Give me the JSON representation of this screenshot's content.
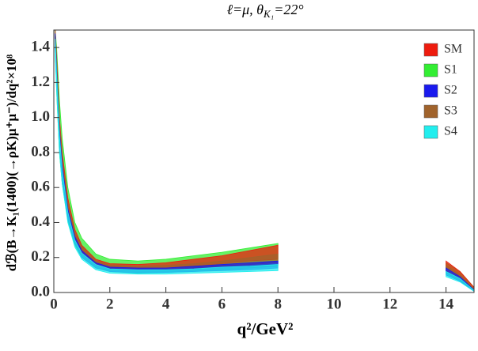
{
  "chart_data": {
    "type": "band",
    "title": [
      "ℓ=μ, θ",
      "K₁",
      "=22°"
    ],
    "xlabel": "q²/GeV²",
    "ylabel": "dℬ(B→K₁(1400)(→ρK)μ⁺μ⁻)/dq²×10⁸",
    "xlim": [
      0,
      15
    ],
    "ylim": [
      0,
      1.5
    ],
    "xticks": [
      0,
      2,
      4,
      6,
      8,
      10,
      12,
      14
    ],
    "yticks": [
      {
        "value": 0,
        "label": "0.0"
      },
      0.2,
      0.4,
      0.6,
      0.8,
      {
        "value": 1,
        "label": "1.0"
      },
      1.2,
      1.4
    ],
    "legend": "top-right",
    "x": [
      0.05,
      0.1,
      0.2,
      0.3,
      0.5,
      0.75,
      1,
      1.5,
      2,
      3,
      4,
      5,
      6,
      7,
      8,
      11,
      14,
      14.5,
      15
    ],
    "series": [
      {
        "name": "S1",
        "color": "#33ee33",
        "upper": [
          1.5,
          1.4,
          1.1,
          0.88,
          0.6,
          0.4,
          0.31,
          0.22,
          0.19,
          0.18,
          0.19,
          0.21,
          0.23,
          0.255,
          0.28,
          null,
          0.17,
          0.12,
          0.03
        ],
        "lower": [
          1.4,
          1.15,
          0.8,
          0.62,
          0.41,
          0.27,
          0.2,
          0.14,
          0.12,
          0.11,
          0.115,
          0.12,
          0.13,
          0.14,
          0.15,
          null,
          0.11,
          0.07,
          0.01
        ]
      },
      {
        "name": "SM",
        "color": "#ee1c0e",
        "upper": [
          1.5,
          1.35,
          1.0,
          0.8,
          0.54,
          0.36,
          0.27,
          0.19,
          0.165,
          0.16,
          0.17,
          0.19,
          0.21,
          0.24,
          0.27,
          null,
          0.18,
          0.12,
          0.03
        ],
        "lower": [
          1.45,
          1.25,
          0.9,
          0.7,
          0.47,
          0.31,
          0.23,
          0.165,
          0.14,
          0.135,
          0.14,
          0.15,
          0.165,
          0.18,
          0.19,
          null,
          0.14,
          0.09,
          0.015
        ]
      },
      {
        "name": "S3",
        "color": "#a0632c",
        "upper": [
          1.5,
          1.32,
          0.97,
          0.77,
          0.51,
          0.34,
          0.26,
          0.18,
          0.155,
          0.15,
          0.155,
          0.165,
          0.18,
          0.2,
          0.22,
          null,
          0.155,
          0.1,
          0.02
        ],
        "lower": [
          1.42,
          1.22,
          0.88,
          0.69,
          0.45,
          0.3,
          0.22,
          0.155,
          0.135,
          0.128,
          0.13,
          0.14,
          0.15,
          0.16,
          0.17,
          null,
          0.125,
          0.08,
          0.01
        ]
      },
      {
        "name": "S2",
        "color": "#1a1aee",
        "upper": [
          1.48,
          1.28,
          0.93,
          0.73,
          0.48,
          0.32,
          0.24,
          0.17,
          0.145,
          0.14,
          0.14,
          0.15,
          0.16,
          0.17,
          0.18,
          null,
          0.14,
          0.09,
          0.015
        ],
        "lower": [
          1.38,
          1.18,
          0.84,
          0.65,
          0.42,
          0.28,
          0.2,
          0.14,
          0.12,
          0.112,
          0.115,
          0.12,
          0.125,
          0.13,
          0.14,
          null,
          0.1,
          0.065,
          0.008
        ]
      },
      {
        "name": "S4",
        "color": "#22eeee",
        "upper": [
          1.45,
          1.25,
          0.9,
          0.7,
          0.46,
          0.3,
          0.225,
          0.16,
          0.135,
          0.13,
          0.13,
          0.135,
          0.145,
          0.15,
          0.16,
          null,
          0.12,
          0.08,
          0.012
        ],
        "lower": [
          1.35,
          1.15,
          0.8,
          0.62,
          0.4,
          0.26,
          0.19,
          0.13,
          0.11,
          0.105,
          0.105,
          0.11,
          0.115,
          0.12,
          0.125,
          null,
          0.09,
          0.06,
          0.006
        ]
      }
    ],
    "legend_order": [
      1,
      0,
      3,
      2,
      4
    ]
  }
}
